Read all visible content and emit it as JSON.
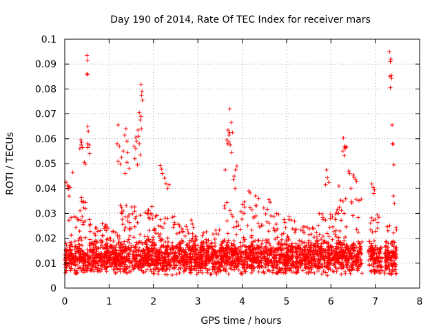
{
  "chart_data": {
    "type": "scatter",
    "title": "Day 190 of 2014, Rate Of TEC Index for receiver mars",
    "xlabel": "GPS time / hours",
    "ylabel": "ROTI / TECUs",
    "xlim": [
      0,
      8
    ],
    "ylim": [
      0,
      0.1
    ],
    "xticks": [
      0,
      1,
      2,
      3,
      4,
      5,
      6,
      7,
      8
    ],
    "xtick_labels": [
      "0",
      "1",
      "2",
      "3",
      "4",
      "5",
      "6",
      "7",
      "8"
    ],
    "yticks": [
      0,
      0.01,
      0.02,
      0.03,
      0.04,
      0.05,
      0.06,
      0.07,
      0.08,
      0.09,
      0.1
    ],
    "ytick_labels": [
      "0",
      "0.01",
      "0.02",
      "0.03",
      "0.04",
      "0.05",
      "0.06",
      "0.07",
      "0.08",
      "0.09",
      "0.1"
    ],
    "grid": true,
    "marker": "+",
    "color": "#ff0000",
    "series": [
      {
        "name": "ROTI",
        "points": [
          [
            0.5,
            0.0935
          ],
          [
            0.51,
            0.0915
          ],
          [
            0.5,
            0.086
          ],
          [
            0.51,
            0.0858
          ],
          [
            0.52,
            0.065
          ],
          [
            0.53,
            0.063
          ],
          [
            0.51,
            0.058
          ],
          [
            0.55,
            0.0575
          ],
          [
            0.52,
            0.0565
          ],
          [
            0.36,
            0.0595
          ],
          [
            0.38,
            0.0585
          ],
          [
            0.37,
            0.0575
          ],
          [
            0.4,
            0.0565
          ],
          [
            0.34,
            0.056
          ],
          [
            0.56,
            0.054
          ],
          [
            0.44,
            0.0505
          ],
          [
            0.47,
            0.0498
          ],
          [
            0.18,
            0.0465
          ],
          [
            0.03,
            0.0425
          ],
          [
            0.06,
            0.0412
          ],
          [
            0.09,
            0.0408
          ],
          [
            0.12,
            0.0405
          ],
          [
            0.08,
            0.0398
          ],
          [
            1.2,
            0.0655
          ],
          [
            1.38,
            0.064
          ],
          [
            1.35,
            0.0615
          ],
          [
            1.4,
            0.059
          ],
          [
            1.18,
            0.058
          ],
          [
            1.23,
            0.057
          ],
          [
            1.32,
            0.055
          ],
          [
            1.42,
            0.0545
          ],
          [
            1.28,
            0.0525
          ],
          [
            1.2,
            0.051
          ],
          [
            1.25,
            0.0498
          ],
          [
            1.4,
            0.0505
          ],
          [
            1.45,
            0.048
          ],
          [
            1.36,
            0.046
          ],
          [
            1.72,
            0.0818
          ],
          [
            1.74,
            0.079
          ],
          [
            1.73,
            0.0775
          ],
          [
            1.75,
            0.0755
          ],
          [
            1.68,
            0.0705
          ],
          [
            1.72,
            0.069
          ],
          [
            1.7,
            0.0675
          ],
          [
            1.73,
            0.064
          ],
          [
            1.65,
            0.0635
          ],
          [
            1.66,
            0.061
          ],
          [
            1.6,
            0.0605
          ],
          [
            1.62,
            0.059
          ],
          [
            1.68,
            0.058
          ],
          [
            1.56,
            0.057
          ],
          [
            1.6,
            0.056
          ],
          [
            1.7,
            0.0535
          ],
          [
            1.58,
            0.052
          ],
          [
            1.64,
            0.0495
          ],
          [
            2.15,
            0.0493
          ],
          [
            2.18,
            0.0478
          ],
          [
            2.2,
            0.046
          ],
          [
            2.25,
            0.0442
          ],
          [
            2.28,
            0.042
          ],
          [
            2.35,
            0.0415
          ],
          [
            2.32,
            0.04
          ],
          [
            3.72,
            0.072
          ],
          [
            3.75,
            0.0665
          ],
          [
            3.68,
            0.0635
          ],
          [
            3.72,
            0.0625
          ],
          [
            3.7,
            0.0615
          ],
          [
            3.78,
            0.0625
          ],
          [
            3.65,
            0.0595
          ],
          [
            3.7,
            0.0588
          ],
          [
            3.67,
            0.058
          ],
          [
            3.73,
            0.0575
          ],
          [
            3.76,
            0.0545
          ],
          [
            3.62,
            0.0475
          ],
          [
            3.88,
            0.049
          ],
          [
            3.85,
            0.0475
          ],
          [
            3.82,
            0.045
          ],
          [
            3.8,
            0.0435
          ],
          [
            3.84,
            0.04
          ],
          [
            4.15,
            0.039
          ],
          [
            4.18,
            0.0382
          ],
          [
            4.3,
            0.037
          ],
          [
            4.37,
            0.036
          ],
          [
            4.6,
            0.0355
          ],
          [
            4.63,
            0.0345
          ],
          [
            5.9,
            0.0475
          ],
          [
            5.92,
            0.0443
          ],
          [
            5.95,
            0.0425
          ],
          [
            5.88,
            0.0415
          ],
          [
            6.28,
            0.0603
          ],
          [
            6.3,
            0.057
          ],
          [
            6.33,
            0.0565
          ],
          [
            6.35,
            0.0568
          ],
          [
            6.32,
            0.056
          ],
          [
            6.27,
            0.055
          ],
          [
            6.3,
            0.0532
          ],
          [
            6.4,
            0.047
          ],
          [
            6.42,
            0.046
          ],
          [
            6.5,
            0.0455
          ],
          [
            6.52,
            0.0445
          ],
          [
            6.55,
            0.0437
          ],
          [
            6.58,
            0.0428
          ],
          [
            6.45,
            0.04
          ],
          [
            6.18,
            0.041
          ],
          [
            6.92,
            0.0418
          ],
          [
            6.95,
            0.0405
          ],
          [
            6.98,
            0.0395
          ],
          [
            6.97,
            0.038
          ],
          [
            7.32,
            0.095
          ],
          [
            7.35,
            0.092
          ],
          [
            7.34,
            0.091
          ],
          [
            7.36,
            0.0855
          ],
          [
            7.33,
            0.085
          ],
          [
            7.37,
            0.0843
          ],
          [
            7.34,
            0.0805
          ],
          [
            7.38,
            0.0655
          ],
          [
            7.39,
            0.058
          ],
          [
            7.4,
            0.0578
          ],
          [
            7.42,
            0.0495
          ],
          [
            7.41,
            0.037
          ],
          [
            7.43,
            0.034
          ]
        ],
        "dense_band": {
          "description": "dense background cluster of ROTI values",
          "x_segments": [
            [
              0.0,
              0.56
            ],
            [
              0.56,
              1.15
            ],
            [
              1.15,
              1.55
            ],
            [
              1.55,
              2.0
            ],
            [
              2.0,
              2.5
            ],
            [
              2.5,
              2.95
            ],
            [
              2.95,
              3.55
            ],
            [
              3.55,
              4.1
            ],
            [
              4.1,
              4.6
            ],
            [
              4.6,
              5.2
            ],
            [
              5.2,
              5.7
            ],
            [
              5.7,
              6.1
            ],
            [
              6.1,
              6.7
            ],
            [
              6.85,
              7.15
            ],
            [
              7.2,
              7.48
            ]
          ],
          "y_ranges": [
            [
              0.006,
              0.038
            ],
            [
              0.006,
              0.026
            ],
            [
              0.006,
              0.035
            ],
            [
              0.006,
              0.033
            ],
            [
              0.004,
              0.03
            ],
            [
              0.005,
              0.028
            ],
            [
              0.005,
              0.024
            ],
            [
              0.005,
              0.035
            ],
            [
              0.006,
              0.034
            ],
            [
              0.006,
              0.03
            ],
            [
              0.006,
              0.025
            ],
            [
              0.005,
              0.03
            ],
            [
              0.005,
              0.036
            ],
            [
              0.006,
              0.03
            ],
            [
              0.003,
              0.027
            ]
          ]
        }
      }
    ]
  }
}
